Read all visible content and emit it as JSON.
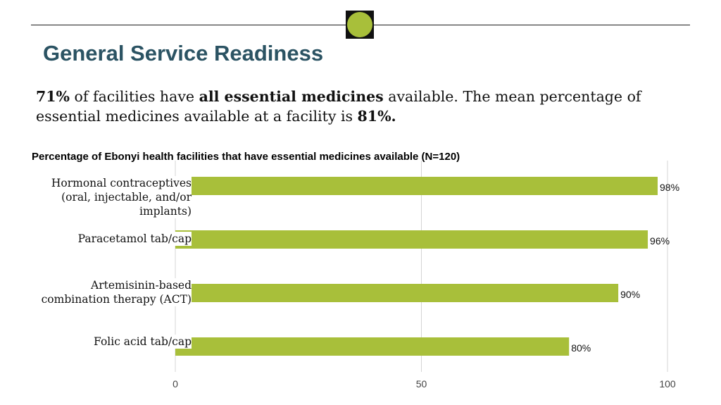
{
  "header": {
    "title": "General Service Readiness"
  },
  "summary": {
    "p1": "71%",
    "p2": " of facilities have ",
    "p3": "all essential medicines",
    "p4": " available. The mean percentage of essential medicines available at a facility is ",
    "p5": "81%.",
    "accent_color": "#a8bf3a"
  },
  "chart_data": {
    "type": "bar",
    "orientation": "horizontal",
    "title": "Percentage of Ebonyi health facilities that have essential medicines available  (N=120)",
    "categories": [
      "Hormonal contraceptives (oral, injectable, and/or implants)",
      "Paracetamol tab/cap",
      "Artemisinin-based combination therapy (ACT)",
      "Folic acid tab/cap"
    ],
    "values": [
      98,
      96,
      90,
      80
    ],
    "data_labels": [
      "98%",
      "96%",
      "90%",
      "80%"
    ],
    "xlim": [
      0,
      100
    ],
    "xticks": [
      0,
      50,
      100
    ],
    "xtick_labels": [
      "0",
      "50",
      "100"
    ],
    "grid": true,
    "bar_color": "#a8bf3a"
  }
}
